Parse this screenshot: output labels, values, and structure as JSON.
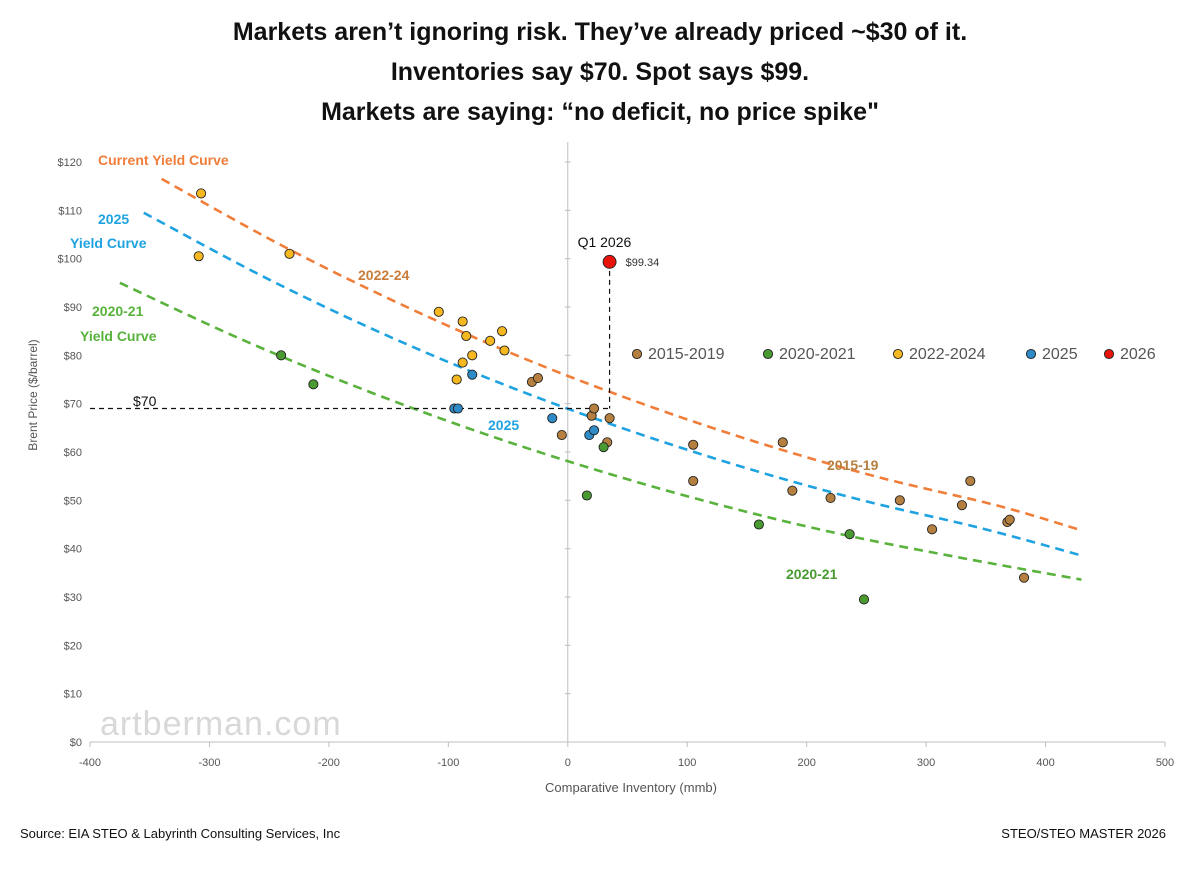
{
  "titles": [
    "Markets aren’t ignoring risk. They’ve already priced ~$30 of it.",
    "Inventories say $70. Spot says $99.",
    "Markets are saying: “no deficit, no price spike\""
  ],
  "source": "Source: EIA STEO & Labyrinth Consulting Services, Inc",
  "file_label": "STEO/STEO MASTER 2026",
  "watermark": "artberman.com",
  "chart_data": {
    "type": "scatter",
    "xlabel": "Comparative Inventory (mmb)",
    "ylabel": "Brent Price ($/barrel)",
    "xlim": [
      -400,
      500
    ],
    "ylim": [
      0,
      120
    ],
    "x_ticks": [
      -400,
      -300,
      -200,
      -100,
      0,
      100,
      200,
      300,
      400,
      500
    ],
    "y_ticks": [
      0,
      10,
      20,
      30,
      40,
      50,
      60,
      70,
      80,
      90,
      100,
      110,
      120
    ],
    "y_tick_labels": [
      "$0",
      "$10",
      "$20",
      "$30",
      "$40",
      "$50",
      "$60",
      "$70",
      "$80",
      "$90",
      "$100",
      "$110",
      "$120"
    ],
    "grid": false,
    "legend_position": "right",
    "series": [
      {
        "name": "2015-2019",
        "color": "#b5803f",
        "points": [
          [
            -30,
            74.5
          ],
          [
            -25,
            75.3
          ],
          [
            -5,
            63.5
          ],
          [
            20,
            67.5
          ],
          [
            22,
            69
          ],
          [
            35,
            67
          ],
          [
            33,
            62
          ],
          [
            105,
            61.5
          ],
          [
            105,
            54
          ],
          [
            180,
            62
          ],
          [
            188,
            52
          ],
          [
            220,
            50.5
          ],
          [
            278,
            50
          ],
          [
            305,
            44
          ],
          [
            330,
            49
          ],
          [
            337,
            54
          ],
          [
            368,
            45.5
          ],
          [
            370,
            46
          ],
          [
            382,
            34
          ]
        ]
      },
      {
        "name": "2020-2021",
        "color": "#4a9a32",
        "points": [
          [
            -240,
            80
          ],
          [
            -213,
            74
          ],
          [
            16,
            51
          ],
          [
            30,
            61
          ],
          [
            160,
            45
          ],
          [
            236,
            43
          ],
          [
            248,
            29.5
          ]
        ]
      },
      {
        "name": "2022-2024",
        "color": "#f5b820",
        "points": [
          [
            -307,
            113.5
          ],
          [
            -309,
            100.5
          ],
          [
            -233,
            101
          ],
          [
            -108,
            89
          ],
          [
            -88,
            87
          ],
          [
            -85,
            84
          ],
          [
            -65,
            83
          ],
          [
            -55,
            85
          ],
          [
            -53,
            81
          ],
          [
            -80,
            80
          ],
          [
            -88,
            78.5
          ],
          [
            -93,
            75
          ]
        ]
      },
      {
        "name": "2025",
        "color": "#2e8bc7",
        "points": [
          [
            -80,
            76
          ],
          [
            -95,
            69
          ],
          [
            -92,
            69
          ],
          [
            -13,
            67
          ],
          [
            18,
            63.5
          ],
          [
            22,
            64.5
          ]
        ]
      },
      {
        "name": "2026",
        "color": "#e8140c",
        "points": [
          [
            35,
            99.34
          ]
        ]
      }
    ],
    "curves": [
      {
        "label": "Current Yield Curve",
        "color": "#f07e3a",
        "points": [
          [
            -340,
            116.5
          ],
          [
            -240,
            102.8
          ],
          [
            -140,
            90.6
          ],
          [
            -40,
            79.7
          ],
          [
            60,
            70.2
          ],
          [
            160,
            61.9
          ],
          [
            260,
            54.8
          ],
          [
            360,
            48.9
          ],
          [
            430,
            43.8
          ]
        ]
      },
      {
        "label": "2025 Yield Curve",
        "color": "#1fa3e0",
        "points": [
          [
            -355,
            109.5
          ],
          [
            -255,
            96.3
          ],
          [
            -155,
            84.5
          ],
          [
            -55,
            74.1
          ],
          [
            45,
            65.0
          ],
          [
            145,
            57.0
          ],
          [
            245,
            50.1
          ],
          [
            345,
            44.3
          ],
          [
            430,
            38.6
          ]
        ]
      },
      {
        "label": "2020-21 Yield Curve",
        "color": "#58b23c",
        "points": [
          [
            -375,
            95
          ],
          [
            -275,
            83.5
          ],
          [
            -175,
            73.3
          ],
          [
            -75,
            64.2
          ],
          [
            25,
            56.2
          ],
          [
            125,
            49.2
          ],
          [
            225,
            43.2
          ],
          [
            325,
            38.3
          ],
          [
            430,
            33.6
          ]
        ]
      }
    ],
    "annotations": {
      "q1_label": "Q1 2026",
      "q1_value": "$99.34",
      "seventy_label": "$70",
      "seventy_value": 69,
      "curve_labels": {
        "current": "Current Yield Curve",
        "y2025_a": "2025",
        "y2025_b": "Yield Curve",
        "y2020_a": "2020-21",
        "y2020_b": "Yield Curve",
        "l2022": "2022-24",
        "l2025": "2025",
        "l2015": "2015-19",
        "l2020": "2020-21"
      }
    }
  }
}
